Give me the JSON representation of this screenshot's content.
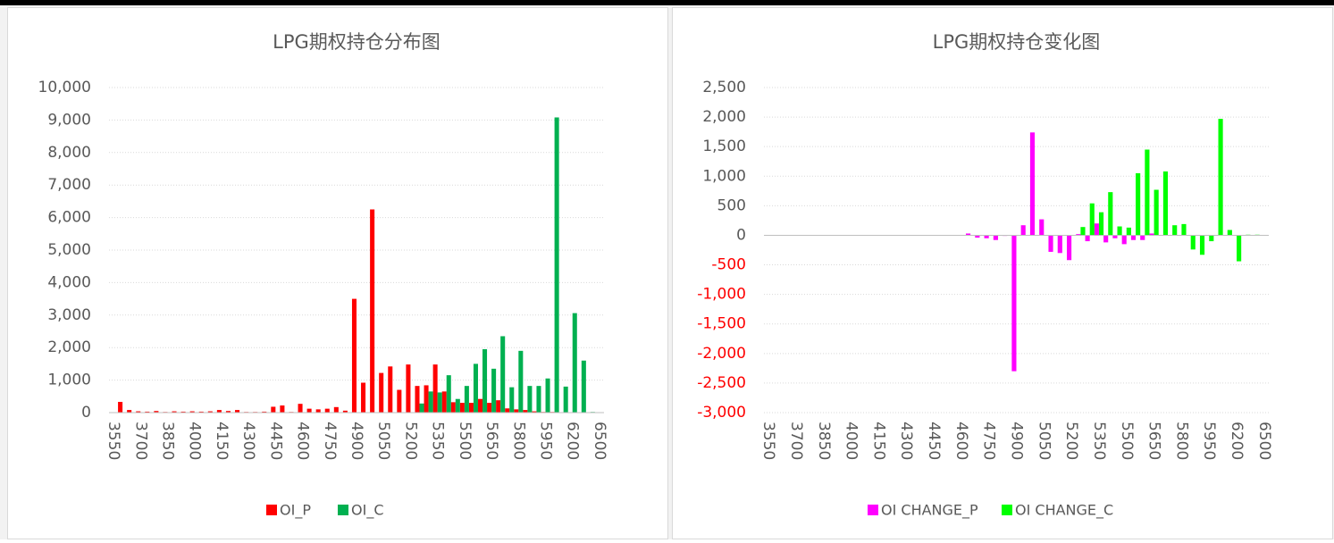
{
  "chart_data": [
    {
      "type": "bar",
      "title": "LPG期权持仓分布图",
      "categories": [
        "3550",
        null,
        null,
        "3700",
        null,
        null,
        "3850",
        null,
        null,
        "4000",
        null,
        null,
        "4150",
        null,
        null,
        "4300",
        null,
        null,
        "4450",
        null,
        null,
        "4600",
        null,
        null,
        "4750",
        null,
        null,
        "4900",
        null,
        null,
        "5050",
        null,
        null,
        "5200",
        null,
        null,
        "5350",
        null,
        null,
        "5500",
        null,
        null,
        "5650",
        null,
        null,
        "5800",
        null,
        null,
        "5950",
        null,
        null,
        "6200",
        null,
        null,
        "6500"
      ],
      "series": [
        {
          "name": "OI_P",
          "color": "#ff0000",
          "values": [
            0,
            330,
            80,
            40,
            30,
            50,
            20,
            40,
            30,
            40,
            30,
            40,
            80,
            50,
            80,
            20,
            20,
            30,
            180,
            220,
            20,
            270,
            120,
            100,
            120,
            170,
            60,
            3500,
            920,
            6250,
            1220,
            1420,
            700,
            1480,
            820,
            840,
            1480,
            650,
            320,
            300,
            300,
            420,
            300,
            380,
            130,
            100,
            80,
            40,
            20,
            20,
            10,
            10,
            10,
            0,
            0
          ]
        },
        {
          "name": "OI_C",
          "color": "#00b050",
          "values": [
            0,
            0,
            0,
            0,
            0,
            0,
            0,
            0,
            0,
            0,
            0,
            0,
            0,
            0,
            0,
            0,
            0,
            0,
            0,
            0,
            0,
            0,
            0,
            0,
            0,
            0,
            0,
            0,
            0,
            0,
            0,
            0,
            0,
            0,
            280,
            650,
            620,
            1150,
            420,
            820,
            1500,
            1950,
            1350,
            2350,
            780,
            1900,
            820,
            820,
            1050,
            9080,
            800,
            3060,
            1600,
            20,
            0
          ]
        }
      ],
      "ylim": [
        0,
        10000
      ],
      "yticks": [
        0,
        {
          "value": 1000,
          "label": "1,000"
        },
        {
          "value": 2000,
          "label": "2,000"
        },
        {
          "value": 3000,
          "label": "3,000"
        },
        {
          "value": 4000,
          "label": "4,000"
        },
        {
          "value": 5000,
          "label": "5,000"
        },
        {
          "value": 6000,
          "label": "6,000"
        },
        {
          "value": 7000,
          "label": "7,000"
        },
        {
          "value": 8000,
          "label": "8,000"
        },
        {
          "value": 9000,
          "label": "9,000"
        },
        {
          "value": 10000,
          "label": "10,000"
        }
      ],
      "grid": true,
      "legend": "bottom"
    },
    {
      "type": "bar",
      "title": "LPG期权持仓变化图",
      "categories": [
        "3550",
        null,
        null,
        "3700",
        null,
        null,
        "3850",
        null,
        null,
        "4000",
        null,
        null,
        "4150",
        null,
        null,
        "4300",
        null,
        null,
        "4450",
        null,
        null,
        "4600",
        null,
        null,
        "4750",
        null,
        null,
        "4900",
        null,
        null,
        "5050",
        null,
        null,
        "5200",
        null,
        null,
        "5350",
        null,
        null,
        "5500",
        null,
        null,
        "5650",
        null,
        null,
        "5800",
        null,
        null,
        "5950",
        null,
        null,
        "6200",
        null,
        null,
        "6500"
      ],
      "series": [
        {
          "name": "OI CHANGE_P",
          "color": "#ff00ff",
          "values": [
            0,
            0,
            0,
            0,
            0,
            0,
            0,
            0,
            0,
            0,
            0,
            0,
            0,
            0,
            0,
            0,
            0,
            0,
            0,
            0,
            0,
            5,
            30,
            -40,
            -50,
            -80,
            -10,
            -2300,
            170,
            1740,
            270,
            -280,
            -300,
            -420,
            20,
            -100,
            200,
            -120,
            -50,
            -150,
            -80,
            -80,
            30,
            0,
            0,
            0,
            0,
            0,
            0,
            0,
            0,
            0,
            0,
            0,
            0
          ]
        },
        {
          "name": "OI CHANGE_C",
          "color": "#00ff00",
          "values": [
            0,
            0,
            0,
            0,
            0,
            0,
            0,
            0,
            0,
            0,
            0,
            0,
            0,
            0,
            0,
            0,
            0,
            0,
            0,
            0,
            0,
            0,
            0,
            0,
            0,
            0,
            0,
            0,
            0,
            0,
            0,
            0,
            0,
            0,
            140,
            540,
            390,
            730,
            150,
            130,
            1050,
            1450,
            770,
            1080,
            170,
            190,
            -240,
            -330,
            -100,
            1970,
            90,
            -440,
            10,
            10,
            0
          ]
        }
      ],
      "ylim": [
        -3000,
        2500
      ],
      "yticks": [
        {
          "value": -3000,
          "label": "-3,000"
        },
        {
          "value": -2500,
          "label": "-2,500"
        },
        {
          "value": -2000,
          "label": "-2,000"
        },
        {
          "value": -1500,
          "label": "-1,500"
        },
        {
          "value": -1000,
          "label": "-1,000"
        },
        -500,
        0,
        500,
        {
          "value": 1000,
          "label": "1,000"
        },
        {
          "value": 1500,
          "label": "1,500"
        },
        {
          "value": 2000,
          "label": "2,000"
        },
        {
          "value": 2500,
          "label": "2,500"
        }
      ],
      "grid": true,
      "legend": "bottom",
      "negative_tick_color": "#ff0000"
    }
  ]
}
